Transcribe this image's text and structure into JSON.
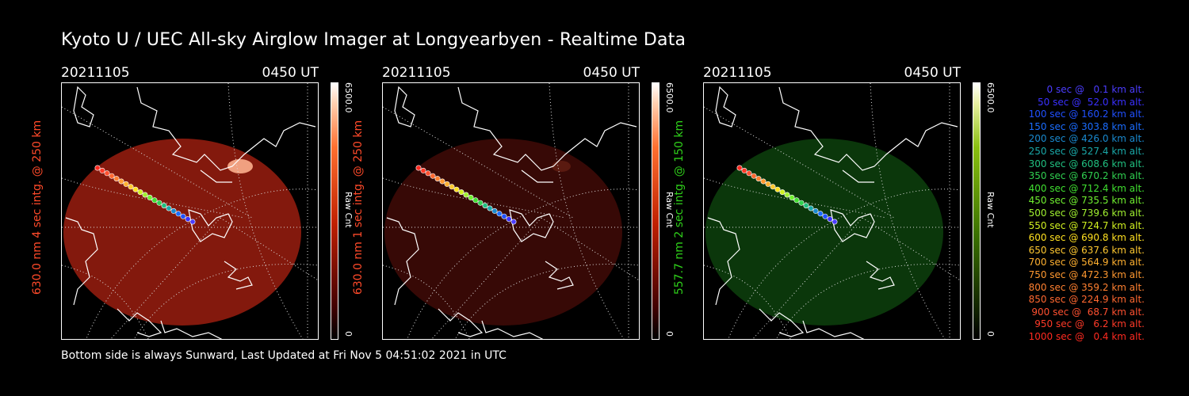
{
  "title": "Kyoto U / UEC All-sky Airglow Imager at Longyearbyen - Realtime Data",
  "panels": [
    {
      "date": "20211105",
      "time": "0450 UT",
      "ylabel": "630.0 nm 4 sec intg. @ 250 km",
      "label_color": "#ff4a2a",
      "cbar_max": "6500.0",
      "cbar_unit": "Raw Cnt",
      "cbar_min": "0",
      "cbar_gradient": "red",
      "fill_color": "#8a1a0e",
      "fill_opacity": 0.95
    },
    {
      "date": "20211105",
      "time": "0450 UT",
      "ylabel": "630.0 nm 1 sec intg. @ 250 km",
      "label_color": "#ff4a2a",
      "cbar_max": "6500.0",
      "cbar_unit": "Raw Cnt",
      "cbar_min": "0",
      "cbar_gradient": "red",
      "fill_color": "#3a0a06",
      "fill_opacity": 0.95
    },
    {
      "date": "20211105",
      "time": "0450 UT",
      "ylabel": "557.7 nm 2 sec intg. @ 150 km",
      "label_color": "#2fd01a",
      "cbar_max": "6500.0",
      "cbar_unit": "Raw Cnt",
      "cbar_min": "0",
      "cbar_gradient": "green",
      "fill_color": "#0c3a0c",
      "fill_opacity": 0.95
    }
  ],
  "legend": [
    {
      "text": "0 sec @   0.1 km alt.",
      "color": "#4b3cff"
    },
    {
      "text": "50 sec @  52.0 km alt.",
      "color": "#3a30ff"
    },
    {
      "text": "100 sec @ 160.2 km alt.",
      "color": "#2050ff"
    },
    {
      "text": "150 sec @ 303.8 km alt.",
      "color": "#1a6cff"
    },
    {
      "text": "200 sec @ 426.0 km alt.",
      "color": "#1a8ad0"
    },
    {
      "text": "250 sec @ 527.4 km alt.",
      "color": "#1aa8a8"
    },
    {
      "text": "300 sec @ 608.6 km alt.",
      "color": "#20c080"
    },
    {
      "text": "350 sec @ 670.2 km alt.",
      "color": "#30d050"
    },
    {
      "text": "400 sec @ 712.4 km alt.",
      "color": "#40e030"
    },
    {
      "text": "450 sec @ 735.5 km alt.",
      "color": "#70f030"
    },
    {
      "text": "500 sec @ 739.6 km alt.",
      "color": "#a0f030"
    },
    {
      "text": "550 sec @ 724.7 km alt.",
      "color": "#d0f020"
    },
    {
      "text": "600 sec @ 690.8 km alt.",
      "color": "#ffe020"
    },
    {
      "text": "650 sec @ 637.6 km alt.",
      "color": "#ffc830"
    },
    {
      "text": "700 sec @ 564.9 km alt.",
      "color": "#ffb030"
    },
    {
      "text": "750 sec @ 472.3 km alt.",
      "color": "#ff9830"
    },
    {
      "text": "800 sec @ 359.2 km alt.",
      "color": "#ff8030"
    },
    {
      "text": "850 sec @ 224.9 km alt.",
      "color": "#ff6830"
    },
    {
      "text": "900 sec @  68.7 km alt.",
      "color": "#ff5030"
    },
    {
      "text": "950 sec @   6.2 km alt.",
      "color": "#ff3a28"
    },
    {
      "text": "1000 sec @   0.4 km alt.",
      "color": "#ff2a20"
    }
  ],
  "footer": "Bottom side is always Sunward, Last Updated at Fri Nov  5 04:51:02 2021 in UTC"
}
